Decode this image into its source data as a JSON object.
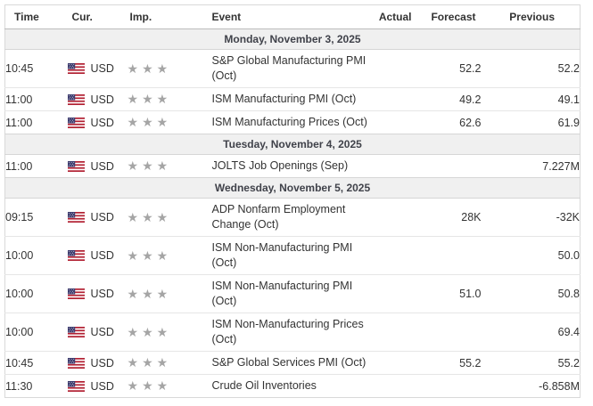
{
  "table": {
    "columns": [
      "Time",
      "Cur.",
      "Imp.",
      "Event",
      "Actual",
      "Forecast",
      "Previous"
    ],
    "sections": [
      {
        "date": "Monday, November 3, 2025",
        "rows": [
          {
            "time": "10:45",
            "currency": "USD",
            "importance": 3,
            "event": "S&P Global Manufacturing PMI (Oct)",
            "actual": "",
            "forecast": "52.2",
            "previous": "52.2"
          },
          {
            "time": "11:00",
            "currency": "USD",
            "importance": 3,
            "event": "ISM Manufacturing PMI (Oct)",
            "actual": "",
            "forecast": "49.2",
            "previous": "49.1"
          },
          {
            "time": "11:00",
            "currency": "USD",
            "importance": 3,
            "event": "ISM Manufacturing Prices (Oct)",
            "actual": "",
            "forecast": "62.6",
            "previous": "61.9"
          }
        ]
      },
      {
        "date": "Tuesday, November 4, 2025",
        "rows": [
          {
            "time": "11:00",
            "currency": "USD",
            "importance": 3,
            "event": "JOLTS Job Openings (Sep)",
            "actual": "",
            "forecast": "",
            "previous": "7.227M"
          }
        ]
      },
      {
        "date": "Wednesday, November 5, 2025",
        "rows": [
          {
            "time": "09:15",
            "currency": "USD",
            "importance": 3,
            "event": "ADP Nonfarm Employment Change (Oct)",
            "actual": "",
            "forecast": "28K",
            "previous": "-32K"
          },
          {
            "time": "10:00",
            "currency": "USD",
            "importance": 3,
            "event": "ISM Non-Manufacturing PMI (Oct)",
            "actual": "",
            "forecast": "",
            "previous": "50.0"
          },
          {
            "time": "10:00",
            "currency": "USD",
            "importance": 3,
            "event": "ISM Non-Manufacturing PMI (Oct)",
            "actual": "",
            "forecast": "51.0",
            "previous": "50.8"
          },
          {
            "time": "10:00",
            "currency": "USD",
            "importance": 3,
            "event": "ISM Non-Manufacturing Prices (Oct)",
            "actual": "",
            "forecast": "",
            "previous": "69.4"
          },
          {
            "time": "10:45",
            "currency": "USD",
            "importance": 3,
            "event": "S&P Global Services PMI (Oct)",
            "actual": "",
            "forecast": "55.2",
            "previous": "55.2"
          },
          {
            "time": "11:30",
            "currency": "USD",
            "importance": 3,
            "event": "Crude Oil Inventories",
            "actual": "",
            "forecast": "",
            "previous": "-6.858M"
          }
        ]
      }
    ]
  },
  "icons": {
    "flag": "us-flag-icon",
    "importance": "star-icon",
    "star_glyph": "★"
  },
  "colors": {
    "flag_red": "#b22234",
    "flag_blue": "#3c3b6e",
    "star_gray": "#a5a5a5",
    "date_row_background": "#f0f0f0",
    "date_text": "#40424a",
    "header_text": "#333333",
    "forecast_text": "#545454",
    "previous_text": "#111111",
    "row_border": "#e6e6e6"
  }
}
